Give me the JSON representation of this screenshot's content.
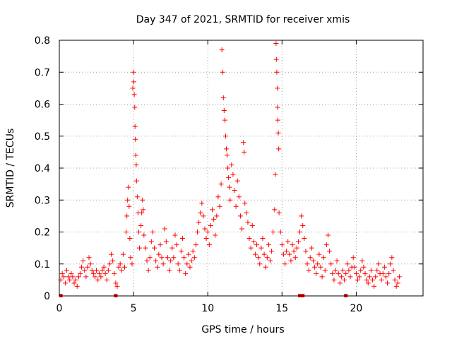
{
  "chart_data": {
    "type": "scatter",
    "title": "Day 347 of 2021, SRMTID for receiver xmis",
    "xlabel": "GPS time / hours",
    "ylabel": "SRMTID / TECUs",
    "xlim": [
      0,
      24.5
    ],
    "ylim": [
      0,
      0.8
    ],
    "x_ticks": [
      0,
      5,
      10,
      15,
      20
    ],
    "x_tick_labels": [
      "0",
      "5",
      "10",
      "15",
      "20"
    ],
    "y_ticks": [
      0,
      0.1,
      0.2,
      0.3,
      0.4,
      0.5,
      0.6,
      0.7,
      0.8
    ],
    "y_tick_labels": [
      "0",
      "0.1",
      "0.2",
      "0.3",
      "0.4",
      "0.5",
      "0.6",
      "0.7",
      "0.8"
    ],
    "grid": true,
    "marker": "plus",
    "color": "#ff0000",
    "series": [
      {
        "name": "SRMTID",
        "points": [
          [
            0.1,
            0.05
          ],
          [
            0.2,
            0.07
          ],
          [
            0.3,
            0.06
          ],
          [
            0.4,
            0.04
          ],
          [
            0.5,
            0.08
          ],
          [
            0.6,
            0.06
          ],
          [
            0.7,
            0.05
          ],
          [
            0.8,
            0.07
          ],
          [
            0.9,
            0.06
          ],
          [
            1.0,
            0.04
          ],
          [
            1.1,
            0.05
          ],
          [
            1.2,
            0.03
          ],
          [
            1.3,
            0.06
          ],
          [
            1.4,
            0.07
          ],
          [
            1.5,
            0.09
          ],
          [
            1.6,
            0.11
          ],
          [
            1.7,
            0.08
          ],
          [
            1.8,
            0.06
          ],
          [
            1.9,
            0.09
          ],
          [
            2.0,
            0.12
          ],
          [
            2.1,
            0.1
          ],
          [
            2.2,
            0.08
          ],
          [
            2.3,
            0.07
          ],
          [
            2.4,
            0.06
          ],
          [
            2.5,
            0.08
          ],
          [
            2.6,
            0.05
          ],
          [
            2.7,
            0.07
          ],
          [
            2.8,
            0.06
          ],
          [
            2.9,
            0.08
          ],
          [
            3.0,
            0.09
          ],
          [
            3.1,
            0.07
          ],
          [
            3.2,
            0.05
          ],
          [
            3.3,
            0.08
          ],
          [
            3.4,
            0.1
          ],
          [
            3.5,
            0.13
          ],
          [
            3.6,
            0.11
          ],
          [
            3.7,
            0.07
          ],
          [
            3.8,
            0.04
          ],
          [
            3.9,
            0.03
          ],
          [
            4.0,
            0.09
          ],
          [
            4.1,
            0.1
          ],
          [
            4.2,
            0.08
          ],
          [
            4.3,
            0.13
          ],
          [
            4.4,
            0.09
          ],
          [
            4.5,
            0.2
          ],
          [
            4.55,
            0.25
          ],
          [
            4.6,
            0.3
          ],
          [
            4.65,
            0.34
          ],
          [
            4.7,
            0.28
          ],
          [
            4.75,
            0.18
          ],
          [
            4.8,
            0.12
          ],
          [
            4.9,
            0.1
          ],
          [
            4.95,
            0.65
          ],
          [
            5.0,
            0.7
          ],
          [
            5.02,
            0.67
          ],
          [
            5.05,
            0.63
          ],
          [
            5.08,
            0.59
          ],
          [
            5.1,
            0.53
          ],
          [
            5.12,
            0.49
          ],
          [
            5.15,
            0.44
          ],
          [
            5.18,
            0.41
          ],
          [
            5.2,
            0.36
          ],
          [
            5.25,
            0.31
          ],
          [
            5.3,
            0.26
          ],
          [
            5.35,
            0.2
          ],
          [
            5.4,
            0.15
          ],
          [
            5.5,
            0.22
          ],
          [
            5.55,
            0.26
          ],
          [
            5.6,
            0.3
          ],
          [
            5.65,
            0.27
          ],
          [
            5.7,
            0.19
          ],
          [
            5.8,
            0.15
          ],
          [
            5.9,
            0.11
          ],
          [
            6.0,
            0.08
          ],
          [
            6.1,
            0.12
          ],
          [
            6.2,
            0.17
          ],
          [
            6.3,
            0.2
          ],
          [
            6.4,
            0.15
          ],
          [
            6.5,
            0.11
          ],
          [
            6.6,
            0.09
          ],
          [
            6.7,
            0.13
          ],
          [
            6.8,
            0.16
          ],
          [
            6.9,
            0.12
          ],
          [
            7.0,
            0.1
          ],
          [
            7.1,
            0.21
          ],
          [
            7.2,
            0.17
          ],
          [
            7.3,
            0.12
          ],
          [
            7.4,
            0.08
          ],
          [
            7.5,
            0.11
          ],
          [
            7.6,
            0.15
          ],
          [
            7.7,
            0.12
          ],
          [
            7.8,
            0.19
          ],
          [
            7.9,
            0.16
          ],
          [
            8.0,
            0.1
          ],
          [
            8.1,
            0.08
          ],
          [
            8.2,
            0.14
          ],
          [
            8.3,
            0.18
          ],
          [
            8.4,
            0.12
          ],
          [
            8.5,
            0.07
          ],
          [
            8.6,
            0.1
          ],
          [
            8.7,
            0.13
          ],
          [
            8.8,
            0.09
          ],
          [
            8.9,
            0.11
          ],
          [
            9.0,
            0.14
          ],
          [
            9.1,
            0.12
          ],
          [
            9.2,
            0.16
          ],
          [
            9.3,
            0.2
          ],
          [
            9.4,
            0.23
          ],
          [
            9.5,
            0.26
          ],
          [
            9.6,
            0.29
          ],
          [
            9.7,
            0.25
          ],
          [
            9.8,
            0.21
          ],
          [
            9.9,
            0.18
          ],
          [
            10.0,
            0.2
          ],
          [
            10.1,
            0.16
          ],
          [
            10.2,
            0.22
          ],
          [
            10.3,
            0.27
          ],
          [
            10.4,
            0.24
          ],
          [
            10.5,
            0.19
          ],
          [
            10.6,
            0.25
          ],
          [
            10.7,
            0.31
          ],
          [
            10.8,
            0.28
          ],
          [
            10.9,
            0.35
          ],
          [
            10.95,
            0.77
          ],
          [
            11.0,
            0.7
          ],
          [
            11.05,
            0.62
          ],
          [
            11.1,
            0.58
          ],
          [
            11.15,
            0.55
          ],
          [
            11.2,
            0.5
          ],
          [
            11.25,
            0.46
          ],
          [
            11.3,
            0.44
          ],
          [
            11.35,
            0.4
          ],
          [
            11.4,
            0.37
          ],
          [
            11.45,
            0.34
          ],
          [
            11.5,
            0.3
          ],
          [
            11.6,
            0.41
          ],
          [
            11.7,
            0.38
          ],
          [
            11.8,
            0.33
          ],
          [
            11.9,
            0.28
          ],
          [
            12.0,
            0.36
          ],
          [
            12.1,
            0.31
          ],
          [
            12.2,
            0.25
          ],
          [
            12.3,
            0.21
          ],
          [
            12.4,
            0.48
          ],
          [
            12.45,
            0.45
          ],
          [
            12.5,
            0.29
          ],
          [
            12.6,
            0.26
          ],
          [
            12.7,
            0.23
          ],
          [
            12.8,
            0.18
          ],
          [
            12.9,
            0.15
          ],
          [
            13.0,
            0.22
          ],
          [
            13.1,
            0.17
          ],
          [
            13.2,
            0.13
          ],
          [
            13.3,
            0.16
          ],
          [
            13.4,
            0.12
          ],
          [
            13.5,
            0.1
          ],
          [
            13.6,
            0.15
          ],
          [
            13.7,
            0.18
          ],
          [
            13.8,
            0.13
          ],
          [
            13.9,
            0.09
          ],
          [
            14.0,
            0.12
          ],
          [
            14.1,
            0.16
          ],
          [
            14.2,
            0.11
          ],
          [
            14.3,
            0.14
          ],
          [
            14.4,
            0.2
          ],
          [
            14.5,
            0.27
          ],
          [
            14.55,
            0.38
          ],
          [
            14.6,
            0.79
          ],
          [
            14.62,
            0.74
          ],
          [
            14.65,
            0.7
          ],
          [
            14.68,
            0.65
          ],
          [
            14.7,
            0.59
          ],
          [
            14.72,
            0.55
          ],
          [
            14.75,
            0.51
          ],
          [
            14.78,
            0.46
          ],
          [
            14.8,
            0.26
          ],
          [
            14.9,
            0.2
          ],
          [
            15.0,
            0.16
          ],
          [
            15.1,
            0.13
          ],
          [
            15.2,
            0.1
          ],
          [
            15.3,
            0.14
          ],
          [
            15.4,
            0.17
          ],
          [
            15.5,
            0.13
          ],
          [
            15.6,
            0.11
          ],
          [
            15.7,
            0.16
          ],
          [
            15.8,
            0.14
          ],
          [
            15.9,
            0.12
          ],
          [
            16.0,
            0.15
          ],
          [
            16.1,
            0.17
          ],
          [
            16.2,
            0.2
          ],
          [
            16.3,
            0.25
          ],
          [
            16.4,
            0.22
          ],
          [
            16.5,
            0.18
          ],
          [
            16.6,
            0.14
          ],
          [
            16.7,
            0.1
          ],
          [
            16.8,
            0.08
          ],
          [
            16.9,
            0.12
          ],
          [
            17.0,
            0.15
          ],
          [
            17.1,
            0.11
          ],
          [
            17.2,
            0.09
          ],
          [
            17.3,
            0.07
          ],
          [
            17.4,
            0.1
          ],
          [
            17.5,
            0.13
          ],
          [
            17.6,
            0.09
          ],
          [
            17.7,
            0.06
          ],
          [
            17.8,
            0.12
          ],
          [
            17.9,
            0.08
          ],
          [
            18.0,
            0.16
          ],
          [
            18.1,
            0.19
          ],
          [
            18.2,
            0.14
          ],
          [
            18.3,
            0.1
          ],
          [
            18.4,
            0.07
          ],
          [
            18.5,
            0.05
          ],
          [
            18.6,
            0.08
          ],
          [
            18.7,
            0.11
          ],
          [
            18.8,
            0.07
          ],
          [
            18.9,
            0.04
          ],
          [
            19.0,
            0.06
          ],
          [
            19.1,
            0.08
          ],
          [
            19.2,
            0.05
          ],
          [
            19.3,
            0.07
          ],
          [
            19.4,
            0.1
          ],
          [
            19.5,
            0.08
          ],
          [
            19.6,
            0.06
          ],
          [
            19.7,
            0.09
          ],
          [
            19.8,
            0.12
          ],
          [
            19.9,
            0.09
          ],
          [
            20.0,
            0.07
          ],
          [
            20.1,
            0.05
          ],
          [
            20.2,
            0.06
          ],
          [
            20.3,
            0.08
          ],
          [
            20.4,
            0.11
          ],
          [
            20.5,
            0.09
          ],
          [
            20.6,
            0.07
          ],
          [
            20.7,
            0.05
          ],
          [
            20.8,
            0.04
          ],
          [
            20.9,
            0.06
          ],
          [
            21.0,
            0.08
          ],
          [
            21.1,
            0.05
          ],
          [
            21.2,
            0.03
          ],
          [
            21.3,
            0.06
          ],
          [
            21.4,
            0.08
          ],
          [
            21.5,
            0.1
          ],
          [
            21.6,
            0.07
          ],
          [
            21.7,
            0.05
          ],
          [
            21.8,
            0.07
          ],
          [
            21.9,
            0.09
          ],
          [
            22.0,
            0.06
          ],
          [
            22.1,
            0.04
          ],
          [
            22.2,
            0.07
          ],
          [
            22.3,
            0.1
          ],
          [
            22.4,
            0.12
          ],
          [
            22.5,
            0.08
          ],
          [
            22.6,
            0.05
          ],
          [
            22.7,
            0.03
          ],
          [
            22.8,
            0.04
          ],
          [
            22.9,
            0.06
          ]
        ]
      }
    ],
    "zero_markers_x": [
      0.1,
      3.8,
      16.2,
      16.3,
      16.4,
      19.3
    ]
  }
}
